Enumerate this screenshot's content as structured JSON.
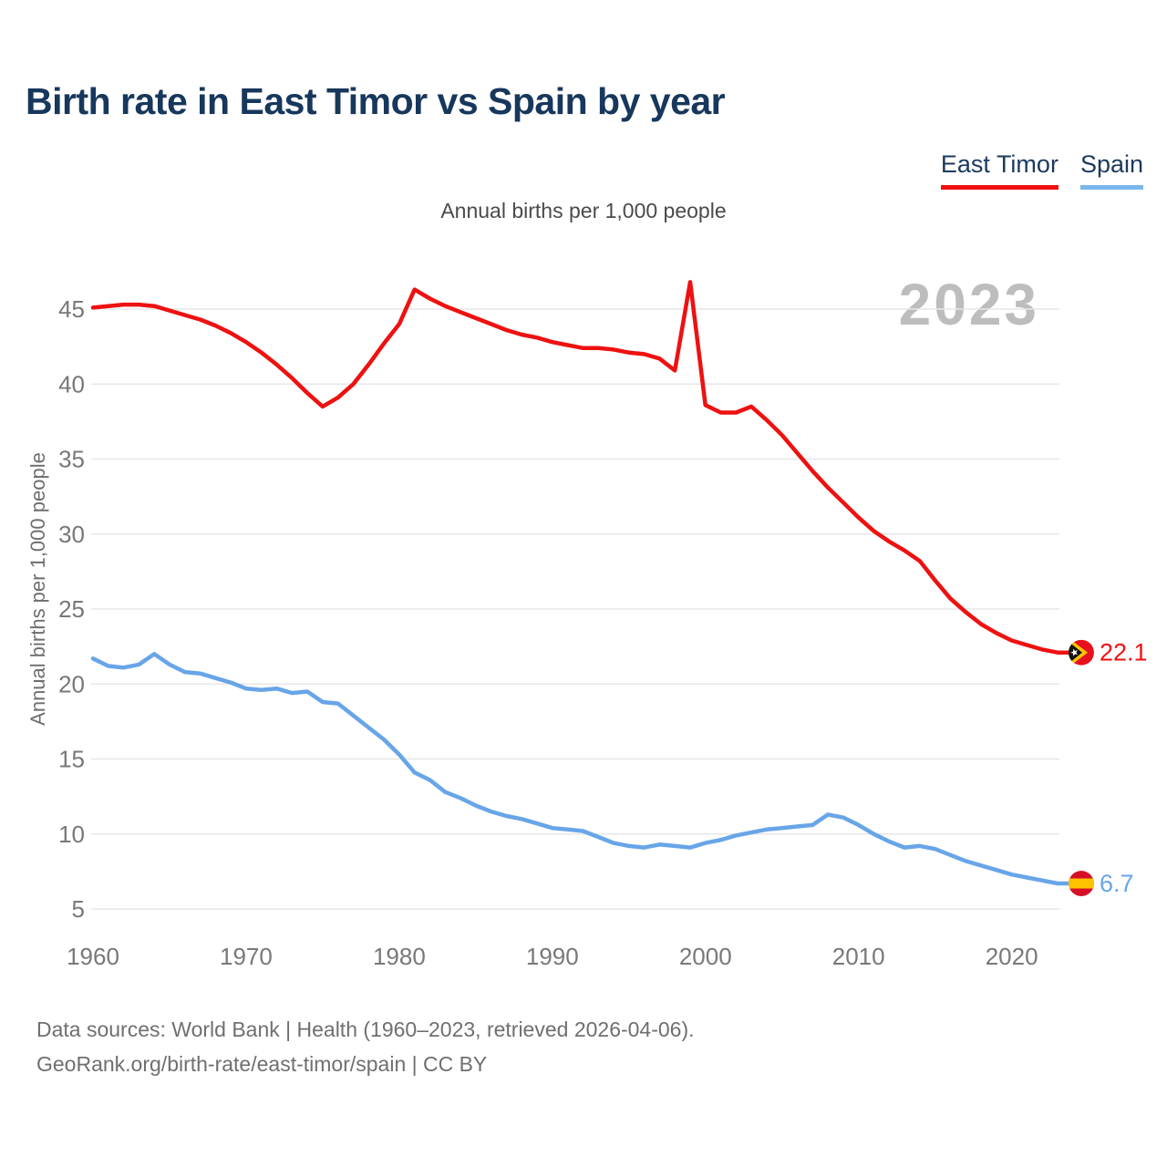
{
  "header": {
    "title": "Birth rate in East Timor vs Spain by year",
    "subtitle": "Annual births per 1,000 people"
  },
  "legend": {
    "items": [
      {
        "label": "East Timor",
        "color": "#ee1111"
      },
      {
        "label": "Spain",
        "color": "#7ab6ec"
      }
    ]
  },
  "watermark": "2023",
  "y_axis_title": "Annual births per 1,000 people",
  "footer": {
    "source_line_1": "Data sources: World Bank | Health (1960–2023, retrieved 2026-04-06).",
    "source_line_2": "GeoRank.org/birth-rate/east-timor/spain | CC BY"
  },
  "chart_data": {
    "type": "line",
    "title": "Birth rate in East Timor vs Spain by year",
    "ylabel": "Annual births per 1,000 people",
    "xlabel": "",
    "grid": true,
    "legend_position": "top-right",
    "xlim": [
      1960,
      2023
    ],
    "ylim": [
      3,
      48
    ],
    "x_ticks": [
      1960,
      1970,
      1980,
      1990,
      2000,
      2010,
      2020
    ],
    "y_ticks": [
      5,
      10,
      15,
      20,
      25,
      30,
      35,
      40,
      45
    ],
    "x": [
      1960,
      1961,
      1962,
      1963,
      1964,
      1965,
      1966,
      1967,
      1968,
      1969,
      1970,
      1971,
      1972,
      1973,
      1974,
      1975,
      1976,
      1977,
      1978,
      1979,
      1980,
      1981,
      1982,
      1983,
      1984,
      1985,
      1986,
      1987,
      1988,
      1989,
      1990,
      1991,
      1992,
      1993,
      1994,
      1995,
      1996,
      1997,
      1998,
      1999,
      2000,
      2001,
      2002,
      2003,
      2004,
      2005,
      2006,
      2007,
      2008,
      2009,
      2010,
      2011,
      2012,
      2013,
      2014,
      2015,
      2016,
      2017,
      2018,
      2019,
      2020,
      2021,
      2022,
      2023
    ],
    "series": [
      {
        "name": "East Timor",
        "color": "#ee1111",
        "flag": "east-timor",
        "end_label": "22.1",
        "values": [
          45.1,
          45.2,
          45.3,
          45.3,
          45.2,
          44.9,
          44.6,
          44.3,
          43.9,
          43.4,
          42.8,
          42.1,
          41.3,
          40.4,
          39.4,
          38.5,
          39.1,
          40.0,
          41.3,
          42.7,
          44.0,
          46.3,
          45.7,
          45.2,
          44.8,
          44.4,
          44.0,
          43.6,
          43.3,
          43.1,
          42.8,
          42.6,
          42.4,
          42.4,
          42.3,
          42.1,
          42.0,
          41.7,
          40.9,
          46.8,
          38.6,
          38.1,
          38.1,
          38.5,
          37.6,
          36.6,
          35.4,
          34.2,
          33.1,
          32.1,
          31.1,
          30.2,
          29.5,
          28.9,
          28.2,
          26.9,
          25.7,
          24.8,
          24.0,
          23.4,
          22.9,
          22.6,
          22.3,
          22.1
        ]
      },
      {
        "name": "Spain",
        "color": "#68a5e8",
        "flag": "spain",
        "end_label": "6.7",
        "values": [
          21.7,
          21.2,
          21.1,
          21.3,
          22.0,
          21.3,
          20.8,
          20.7,
          20.4,
          20.1,
          19.7,
          19.6,
          19.7,
          19.4,
          19.5,
          18.8,
          18.7,
          17.9,
          17.1,
          16.3,
          15.3,
          14.1,
          13.6,
          12.8,
          12.4,
          11.9,
          11.5,
          11.2,
          11.0,
          10.7,
          10.4,
          10.3,
          10.2,
          9.8,
          9.4,
          9.2,
          9.1,
          9.3,
          9.2,
          9.1,
          9.4,
          9.6,
          9.9,
          10.1,
          10.3,
          10.4,
          10.5,
          10.6,
          11.3,
          11.1,
          10.6,
          10.0,
          9.5,
          9.1,
          9.2,
          9.0,
          8.6,
          8.2,
          7.9,
          7.6,
          7.3,
          7.1,
          6.9,
          6.7
        ]
      }
    ]
  }
}
